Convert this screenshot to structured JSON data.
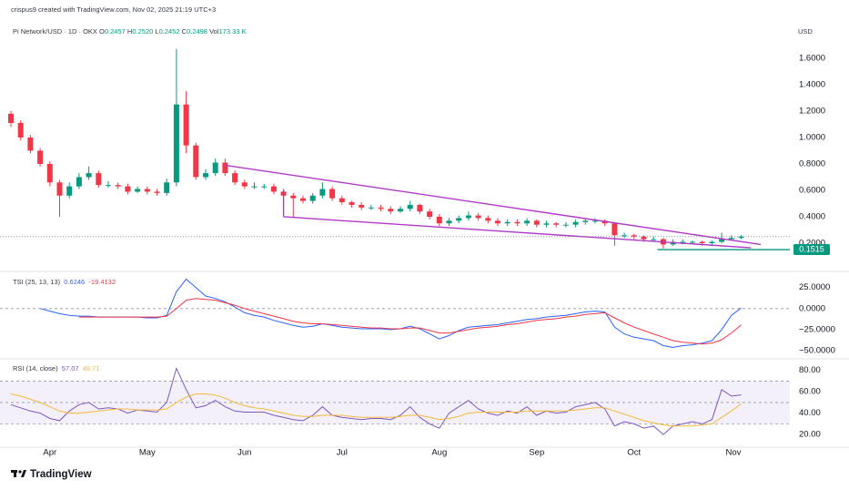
{
  "header": {
    "attribution": "crispus9 created with TradingView.com, Nov 02, 2025 21:19 UTC+3",
    "symbol": "Pi Network/USD · 1D · OKX",
    "ohlc": [
      {
        "label": "O",
        "value": "0.2457"
      },
      {
        "label": "H",
        "value": "0.2520"
      },
      {
        "label": "L",
        "value": "0.2452"
      },
      {
        "label": "C",
        "value": "0.2498"
      },
      {
        "label": "Vol",
        "value": "173.33 K"
      }
    ],
    "currency": "USD"
  },
  "footer": {
    "brand": "TradingView"
  },
  "chart_data": [
    {
      "type": "candlestick",
      "up_color": "#089981",
      "down_color": "#f23645",
      "open": [
        1.18,
        1.11,
        1.0,
        0.9,
        0.8,
        0.66,
        0.56,
        0.63,
        0.7,
        0.73,
        0.64,
        0.64,
        0.63,
        0.59,
        0.61,
        0.59,
        0.58,
        0.66,
        1.25,
        0.94,
        0.7,
        0.73,
        0.81,
        0.73,
        0.66,
        0.63,
        0.63,
        0.63,
        0.59,
        0.56,
        0.54,
        0.52,
        0.56,
        0.61,
        0.54,
        0.51,
        0.49,
        0.47,
        0.47,
        0.46,
        0.44,
        0.46,
        0.49,
        0.44,
        0.4,
        0.35,
        0.37,
        0.39,
        0.41,
        0.39,
        0.37,
        0.35,
        0.36,
        0.35,
        0.37,
        0.34,
        0.35,
        0.34,
        0.34,
        0.36,
        0.37,
        0.37,
        0.35,
        0.26,
        0.26,
        0.25,
        0.23,
        0.23,
        0.19,
        0.21,
        0.21,
        0.21,
        0.2,
        0.21,
        0.23,
        0.24
      ],
      "high": [
        1.2,
        1.13,
        1.02,
        0.92,
        0.82,
        0.68,
        0.66,
        0.73,
        0.78,
        0.75,
        0.67,
        0.66,
        0.65,
        0.63,
        0.63,
        0.61,
        0.69,
        1.67,
        1.35,
        0.96,
        0.76,
        0.84,
        0.84,
        0.75,
        0.68,
        0.66,
        0.65,
        0.65,
        0.61,
        0.58,
        0.56,
        0.58,
        0.66,
        0.63,
        0.56,
        0.52,
        0.51,
        0.49,
        0.49,
        0.48,
        0.48,
        0.52,
        0.5,
        0.46,
        0.42,
        0.39,
        0.41,
        0.44,
        0.43,
        0.41,
        0.39,
        0.38,
        0.38,
        0.39,
        0.38,
        0.37,
        0.36,
        0.36,
        0.38,
        0.39,
        0.39,
        0.38,
        0.36,
        0.28,
        0.27,
        0.26,
        0.25,
        0.24,
        0.23,
        0.23,
        0.22,
        0.22,
        0.22,
        0.28,
        0.26,
        0.26
      ],
      "low": [
        1.08,
        0.98,
        0.88,
        0.78,
        0.63,
        0.4,
        0.54,
        0.61,
        0.68,
        0.62,
        0.62,
        0.61,
        0.57,
        0.58,
        0.57,
        0.56,
        0.56,
        0.63,
        0.88,
        0.68,
        0.68,
        0.71,
        0.71,
        0.64,
        0.61,
        0.61,
        0.61,
        0.57,
        0.54,
        0.4,
        0.5,
        0.5,
        0.54,
        0.52,
        0.49,
        0.47,
        0.45,
        0.45,
        0.44,
        0.42,
        0.43,
        0.44,
        0.42,
        0.38,
        0.33,
        0.33,
        0.35,
        0.37,
        0.37,
        0.35,
        0.33,
        0.33,
        0.33,
        0.33,
        0.32,
        0.32,
        0.32,
        0.32,
        0.32,
        0.34,
        0.35,
        0.33,
        0.18,
        0.24,
        0.23,
        0.21,
        0.21,
        0.16,
        0.18,
        0.19,
        0.19,
        0.18,
        0.19,
        0.2,
        0.22,
        0.23
      ],
      "close": [
        1.11,
        1.0,
        0.9,
        0.8,
        0.66,
        0.56,
        0.63,
        0.7,
        0.73,
        0.64,
        0.64,
        0.63,
        0.59,
        0.61,
        0.59,
        0.58,
        0.66,
        1.25,
        0.94,
        0.7,
        0.73,
        0.81,
        0.73,
        0.66,
        0.63,
        0.63,
        0.63,
        0.59,
        0.56,
        0.54,
        0.52,
        0.56,
        0.61,
        0.54,
        0.51,
        0.49,
        0.47,
        0.47,
        0.46,
        0.44,
        0.46,
        0.49,
        0.44,
        0.4,
        0.35,
        0.37,
        0.39,
        0.41,
        0.39,
        0.37,
        0.35,
        0.36,
        0.35,
        0.37,
        0.34,
        0.35,
        0.34,
        0.34,
        0.36,
        0.37,
        0.37,
        0.35,
        0.26,
        0.26,
        0.25,
        0.23,
        0.23,
        0.19,
        0.21,
        0.21,
        0.21,
        0.2,
        0.21,
        0.23,
        0.24,
        0.25
      ],
      "ylim": [
        0,
        1.834
      ],
      "yticks": [
        {
          "value": 0.2,
          "label": "0.2000"
        },
        {
          "value": 0.4,
          "label": "0.4000"
        },
        {
          "value": 0.6,
          "label": "0.6000"
        },
        {
          "value": 0.8,
          "label": "0.8000"
        },
        {
          "value": 1.0,
          "label": "1.0000"
        },
        {
          "value": 1.2,
          "label": "1.2000"
        },
        {
          "value": 1.4,
          "label": "1.4000"
        },
        {
          "value": 1.6,
          "label": "1.6000"
        }
      ],
      "xlim": [
        0,
        78
      ],
      "xticks": [
        {
          "value": 4,
          "label": "Apr"
        },
        {
          "value": 14,
          "label": "May"
        },
        {
          "value": 24,
          "label": "Jun"
        },
        {
          "value": 34,
          "label": "Jul"
        },
        {
          "value": 44,
          "label": "Aug"
        },
        {
          "value": 54,
          "label": "Sep"
        },
        {
          "value": 64,
          "label": "Oct"
        },
        {
          "value": 74.2,
          "label": "Nov"
        }
      ],
      "trendlines": [
        {
          "color": "#b03ac6",
          "x": [
            22,
            77
          ],
          "y": [
            0.79,
            0.19
          ]
        },
        {
          "color": "#b03ac6",
          "x": [
            28,
            76
          ],
          "y": [
            0.4,
            0.165
          ]
        },
        {
          "color": "#b03ac6",
          "x": [
            28,
            28
          ],
          "y": [
            0.61,
            0.4
          ]
        }
      ],
      "level": {
        "value": 0.1515,
        "x": 66.4,
        "color": "#089981"
      },
      "last_price_line": true
    },
    {
      "type": "line",
      "title": "TSI (25, 13, 13)",
      "series": [
        {
          "color": "#2962ff",
          "values": [
            null,
            null,
            null,
            0,
            -3,
            -6,
            -8,
            -9,
            -9,
            -10,
            -10,
            -10,
            -10,
            -10,
            -11,
            -11,
            -8,
            20,
            35,
            25,
            15,
            12,
            8,
            2,
            -5,
            -8,
            -10,
            -14,
            -17,
            -20,
            -22,
            -21,
            -18,
            -20,
            -22,
            -23,
            -24,
            -24,
            -24,
            -25,
            -24,
            -21,
            -24,
            -30,
            -36,
            -32,
            -26,
            -22,
            -21,
            -20,
            -19,
            -17,
            -15,
            -13,
            -12,
            -10,
            -9,
            -8,
            -6,
            -4,
            -3,
            -4,
            -22,
            -30,
            -34,
            -36,
            -38,
            -44,
            -46,
            -44,
            -43,
            -41,
            -38,
            -25,
            -8,
            0.6246
          ]
        },
        {
          "color": "#f23645",
          "values": [
            null,
            null,
            null,
            null,
            null,
            null,
            null,
            -10,
            -10,
            -10,
            -10,
            -10,
            -10,
            -10,
            -10,
            -10,
            -9,
            0,
            10,
            12,
            11,
            10,
            7,
            4,
            0,
            -3,
            -6,
            -9,
            -12,
            -15,
            -17,
            -18,
            -18,
            -19,
            -20,
            -21,
            -22,
            -23,
            -23,
            -24,
            -24,
            -23,
            -23,
            -26,
            -29,
            -29,
            -27,
            -25,
            -23,
            -22,
            -21,
            -19,
            -18,
            -16,
            -14,
            -13,
            -12,
            -10,
            -9,
            -7,
            -6,
            -5,
            -11,
            -17,
            -22,
            -26,
            -30,
            -34,
            -38,
            -40,
            -41,
            -42,
            -41,
            -37,
            -29,
            -19.4132
          ]
        }
      ],
      "ylim": [
        -58.6,
        42
      ],
      "yticks": [
        {
          "value": 25,
          "label": "25.0000"
        },
        {
          "value": 0,
          "label": "0.0000"
        },
        {
          "value": -25,
          "label": "−25.0000"
        },
        {
          "value": -50,
          "label": "−50.0000"
        }
      ],
      "dashed_levels": [
        0
      ]
    },
    {
      "type": "line",
      "title": "RSI (14, close)",
      "series": [
        {
          "color": "#7e57c2",
          "values": [
            48,
            45,
            42,
            40,
            35,
            33,
            42,
            48,
            50,
            44,
            45,
            44,
            40,
            43,
            42,
            41,
            50,
            82,
            62,
            45,
            47,
            52,
            46,
            42,
            41,
            41,
            41,
            38,
            36,
            34,
            33,
            38,
            46,
            38,
            36,
            35,
            34,
            35,
            35,
            34,
            38,
            46,
            36,
            30,
            26,
            40,
            46,
            52,
            44,
            40,
            38,
            42,
            40,
            46,
            38,
            42,
            40,
            41,
            46,
            48,
            50,
            44,
            28,
            32,
            30,
            26,
            28,
            20,
            28,
            30,
            32,
            30,
            34,
            62,
            56,
            57.07
          ]
        },
        {
          "color": "#f4b93e",
          "values": [
            58,
            56,
            53,
            50,
            46,
            42,
            40,
            40,
            41,
            42,
            43,
            44,
            44,
            43,
            43,
            43,
            44,
            50,
            55,
            58,
            58,
            57,
            54,
            50,
            47,
            45,
            44,
            42,
            40,
            38,
            37,
            37,
            38,
            38,
            38,
            37,
            36,
            36,
            36,
            36,
            37,
            38,
            38,
            36,
            34,
            35,
            37,
            40,
            41,
            41,
            41,
            41,
            41,
            42,
            42,
            42,
            42,
            42,
            43,
            44,
            45,
            45,
            42,
            39,
            36,
            33,
            31,
            29,
            28,
            28,
            28,
            29,
            30,
            36,
            42,
            48.71
          ]
        }
      ],
      "ylim": [
        9,
        90
      ],
      "yticks": [
        {
          "value": 80,
          "label": "80.00"
        },
        {
          "value": 60,
          "label": "60.00"
        },
        {
          "value": 40,
          "label": "40.00"
        },
        {
          "value": 20,
          "label": "20.00"
        }
      ],
      "band": [
        30,
        70
      ],
      "dashed_levels": [
        70,
        50,
        30
      ]
    }
  ]
}
